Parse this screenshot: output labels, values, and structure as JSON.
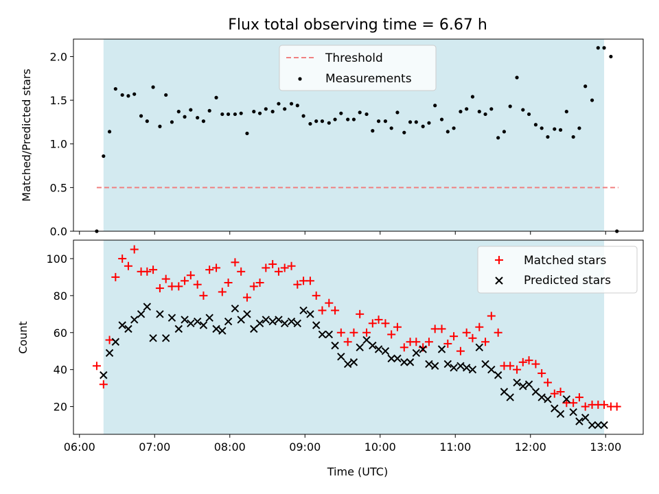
{
  "chart_data": [
    {
      "type": "scatter",
      "title": "Flux total observing time = 6.67 h",
      "xlabel": "",
      "ylabel": "Matched/Predicted stars",
      "xlim_hours": [
        5.92,
        13.5
      ],
      "ylim": [
        0,
        2.2
      ],
      "yticks": [
        0.0,
        0.5,
        1.0,
        1.5,
        2.0
      ],
      "ytick_labels": [
        "0.0",
        "0.5",
        "1.0",
        "1.5",
        "2.0"
      ],
      "grid": false,
      "legend_position": "upper-center",
      "shaded_span_hours": [
        6.32,
        12.98
      ],
      "shaded_color": "#d3eaf0",
      "threshold": {
        "name": "Threshold",
        "y": 0.5,
        "x_range_hours": [
          6.23,
          13.17
        ],
        "color": "#f08080",
        "style": "dashed"
      },
      "series": [
        {
          "name": "Measurements",
          "marker": "dot",
          "color": "#000000",
          "x_hours": [
            6.23,
            6.32,
            6.4,
            6.48,
            6.57,
            6.65,
            6.73,
            6.82,
            6.9,
            6.98,
            7.07,
            7.15,
            7.23,
            7.32,
            7.4,
            7.48,
            7.57,
            7.65,
            7.73,
            7.82,
            7.9,
            7.98,
            8.07,
            8.15,
            8.23,
            8.32,
            8.4,
            8.48,
            8.57,
            8.65,
            8.73,
            8.82,
            8.9,
            8.98,
            9.07,
            9.15,
            9.23,
            9.32,
            9.4,
            9.48,
            9.57,
            9.65,
            9.73,
            9.82,
            9.9,
            9.98,
            10.07,
            10.15,
            10.23,
            10.32,
            10.4,
            10.48,
            10.57,
            10.65,
            10.73,
            10.82,
            10.9,
            10.98,
            11.07,
            11.15,
            11.23,
            11.32,
            11.4,
            11.48,
            11.57,
            11.65,
            11.73,
            11.82,
            11.9,
            11.98,
            12.07,
            12.15,
            12.23,
            12.32,
            12.4,
            12.48,
            12.57,
            12.65,
            12.73,
            12.82,
            12.9,
            12.98,
            13.07,
            13.15
          ],
          "y": [
            0.0,
            0.86,
            1.14,
            1.63,
            1.56,
            1.55,
            1.57,
            1.32,
            1.26,
            1.65,
            1.2,
            1.56,
            1.25,
            1.37,
            1.31,
            1.39,
            1.3,
            1.26,
            1.38,
            1.53,
            1.34,
            1.34,
            1.34,
            1.35,
            1.12,
            1.37,
            1.35,
            1.4,
            1.37,
            1.46,
            1.4,
            1.46,
            1.44,
            1.32,
            1.23,
            1.26,
            1.26,
            1.24,
            1.28,
            1.35,
            1.28,
            1.28,
            1.36,
            1.34,
            1.15,
            1.26,
            1.26,
            1.18,
            1.36,
            1.13,
            1.25,
            1.25,
            1.2,
            1.24,
            1.44,
            1.28,
            1.14,
            1.18,
            1.37,
            1.4,
            1.54,
            1.37,
            1.34,
            1.4,
            1.07,
            1.14,
            1.43,
            1.76,
            1.39,
            1.34,
            1.22,
            1.18,
            1.08,
            1.17,
            1.16,
            1.37,
            1.08,
            1.18,
            1.66,
            1.5,
            2.1,
            2.1,
            2.0,
            0.0
          ]
        }
      ]
    },
    {
      "type": "scatter",
      "title": "",
      "xlabel": "Time (UTC)",
      "ylabel": "Count",
      "xlim_hours": [
        5.92,
        13.5
      ],
      "ylim": [
        5,
        110
      ],
      "yticks": [
        20,
        40,
        60,
        80,
        100
      ],
      "ytick_labels": [
        "20",
        "40",
        "60",
        "80",
        "100"
      ],
      "xticks_hours": [
        6,
        7,
        8,
        9,
        10,
        11,
        12,
        13
      ],
      "xtick_labels": [
        "06:00",
        "07:00",
        "08:00",
        "09:00",
        "10:00",
        "11:00",
        "12:00",
        "13:00"
      ],
      "grid": false,
      "legend_position": "upper-right",
      "shaded_span_hours": [
        6.32,
        12.98
      ],
      "shaded_color": "#d3eaf0",
      "series": [
        {
          "name": "Matched stars",
          "marker": "plus",
          "color": "#ff0000",
          "x_hours": [
            6.23,
            6.32,
            6.4,
            6.48,
            6.57,
            6.65,
            6.73,
            6.82,
            6.9,
            6.98,
            7.07,
            7.15,
            7.23,
            7.32,
            7.4,
            7.48,
            7.57,
            7.65,
            7.73,
            7.82,
            7.9,
            7.98,
            8.07,
            8.15,
            8.23,
            8.32,
            8.4,
            8.48,
            8.57,
            8.65,
            8.73,
            8.82,
            8.9,
            8.98,
            9.07,
            9.15,
            9.23,
            9.32,
            9.4,
            9.48,
            9.57,
            9.65,
            9.73,
            9.82,
            9.9,
            9.98,
            10.07,
            10.15,
            10.23,
            10.32,
            10.4,
            10.48,
            10.57,
            10.65,
            10.73,
            10.82,
            10.9,
            10.98,
            11.07,
            11.15,
            11.23,
            11.32,
            11.4,
            11.48,
            11.57,
            11.65,
            11.73,
            11.82,
            11.9,
            11.98,
            12.07,
            12.15,
            12.23,
            12.32,
            12.4,
            12.48,
            12.57,
            12.65,
            12.73,
            12.82,
            12.9,
            12.98,
            13.07,
            13.15
          ],
          "y": [
            42,
            32,
            56,
            90,
            100,
            96,
            105,
            93,
            93,
            94,
            84,
            89,
            85,
            85,
            88,
            91,
            86,
            80,
            94,
            95,
            82,
            87,
            98,
            93,
            79,
            85,
            87,
            95,
            97,
            93,
            95,
            96,
            86,
            88,
            88,
            80,
            72,
            76,
            72,
            60,
            55,
            60,
            70,
            60,
            65,
            67,
            65,
            59,
            63,
            52,
            55,
            55,
            52,
            55,
            62,
            62,
            54,
            58,
            50,
            60,
            57,
            63,
            55,
            69,
            60,
            42,
            42,
            40,
            44,
            45,
            43,
            38,
            33,
            27,
            28,
            22,
            22,
            25,
            20,
            21,
            21,
            21,
            20,
            20
          ]
        },
        {
          "name": "Predicted stars",
          "marker": "x",
          "color": "#000000",
          "x_hours": [
            6.32,
            6.4,
            6.48,
            6.57,
            6.65,
            6.73,
            6.82,
            6.9,
            6.98,
            7.07,
            7.15,
            7.23,
            7.32,
            7.4,
            7.48,
            7.57,
            7.65,
            7.73,
            7.82,
            7.9,
            7.98,
            8.07,
            8.15,
            8.23,
            8.32,
            8.4,
            8.48,
            8.57,
            8.65,
            8.73,
            8.82,
            8.9,
            8.98,
            9.07,
            9.15,
            9.23,
            9.32,
            9.4,
            9.48,
            9.57,
            9.65,
            9.73,
            9.82,
            9.9,
            9.98,
            10.07,
            10.15,
            10.23,
            10.32,
            10.4,
            10.48,
            10.57,
            10.65,
            10.73,
            10.82,
            10.9,
            10.98,
            11.07,
            11.15,
            11.23,
            11.32,
            11.4,
            11.48,
            11.57,
            11.65,
            11.73,
            11.82,
            11.9,
            11.98,
            12.07,
            12.15,
            12.23,
            12.32,
            12.4,
            12.48,
            12.57,
            12.65,
            12.73,
            12.82,
            12.9,
            12.98
          ],
          "y": [
            37,
            49,
            55,
            64,
            62,
            67,
            70,
            74,
            57,
            70,
            57,
            68,
            62,
            67,
            65,
            66,
            64,
            68,
            62,
            61,
            66,
            73,
            67,
            70,
            62,
            65,
            67,
            66,
            67,
            65,
            66,
            65,
            72,
            70,
            64,
            59,
            59,
            53,
            47,
            43,
            44,
            52,
            56,
            53,
            51,
            50,
            46,
            46,
            44,
            44,
            49,
            51,
            43,
            42,
            51,
            43,
            41,
            42,
            41,
            40,
            52,
            43,
            40,
            37,
            28,
            25,
            33,
            31,
            32,
            28,
            25,
            24,
            19,
            16,
            24,
            17,
            12,
            14,
            10,
            10,
            10
          ]
        }
      ]
    }
  ]
}
